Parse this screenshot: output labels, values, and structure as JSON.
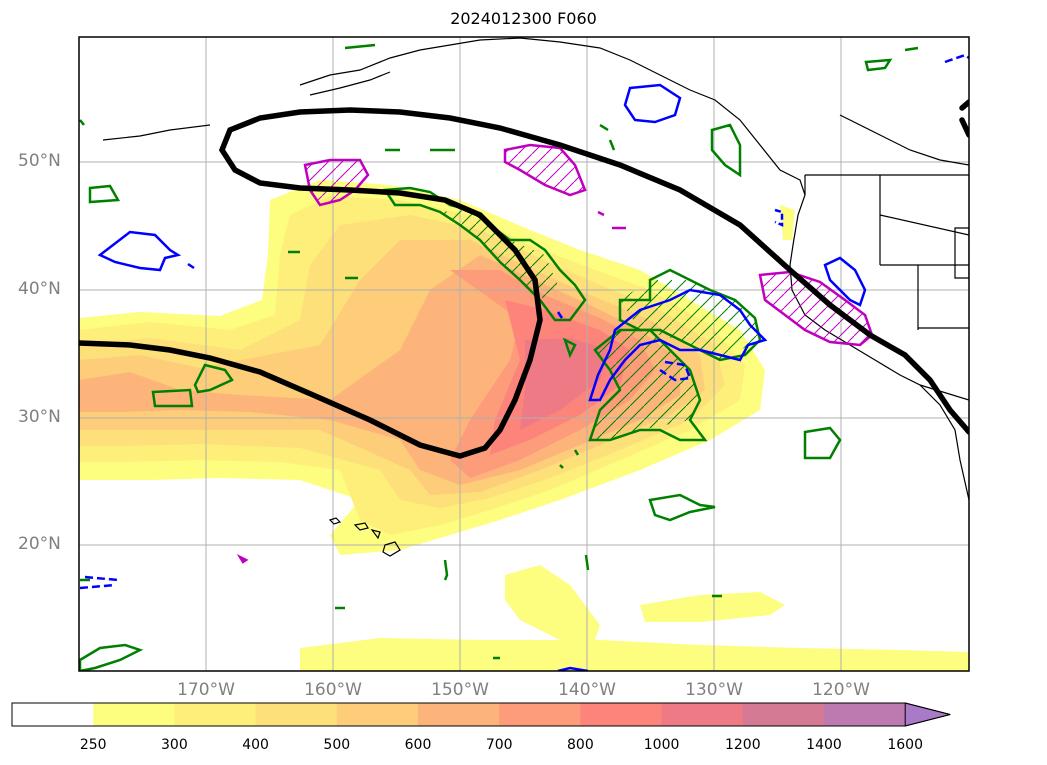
{
  "title": "2024012300 F060",
  "lat_labels": [
    "50°N",
    "40°N",
    "30°N",
    "20°N"
  ],
  "lon_labels": [
    "170°W",
    "160°W",
    "150°W",
    "140°W",
    "130°W",
    "120°W"
  ],
  "colorbar": {
    "ticks": [
      "250",
      "300",
      "400",
      "500",
      "600",
      "700",
      "800",
      "1000",
      "1200",
      "1400",
      "1600"
    ],
    "colors": [
      "#ffffff",
      "#fdfd7f",
      "#fdef7a",
      "#fde07a",
      "#fdcd7a",
      "#fdb47a",
      "#fd9c7a",
      "#fd847a",
      "#ee7a85",
      "#d57a95",
      "#bd7ab0",
      "#a97ac8"
    ],
    "extend": "max"
  },
  "styles": {
    "jet_contour": "#000000",
    "green_contour": "#008000",
    "blue_contour": "#0000ff",
    "magenta_contour": "#bf00bf",
    "coastline": "#000000",
    "gridline": "#b0b0b0"
  }
}
